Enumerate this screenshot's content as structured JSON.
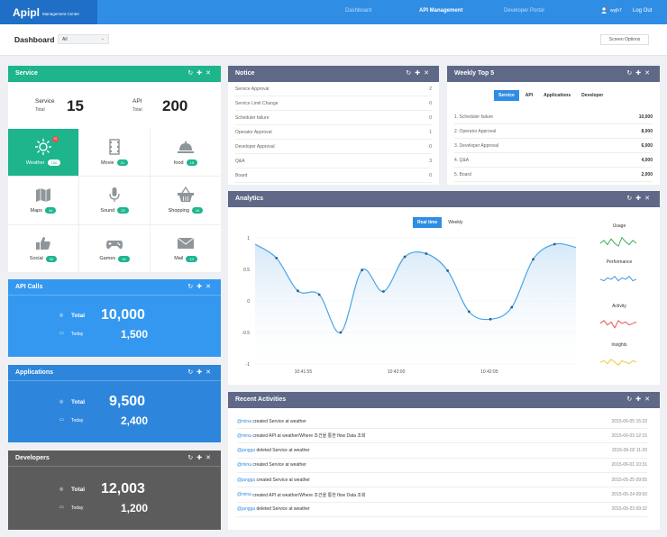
{
  "nav": {
    "logo": "Apipl",
    "sub": "Management Center",
    "links": [
      "Dashboard",
      "API Management",
      "Developer Portal"
    ],
    "user": "wyjh7",
    "user_badge": "N",
    "logout": "Log Out"
  },
  "header": {
    "title": "Dashboard",
    "select_value": "All",
    "screen_options": "Screen Options"
  },
  "service": {
    "title": "Service",
    "stat1_label": "Service",
    "stat1_sub": "Total",
    "stat1_value": "15",
    "stat2_label": "API",
    "stat2_sub": "Total",
    "stat2_value": "200",
    "items": [
      {
        "label": "Weather",
        "count": "150",
        "icon": "sun-icon",
        "notify": "N"
      },
      {
        "label": "Movie",
        "count": "21",
        "icon": "film-icon"
      },
      {
        "label": "food",
        "count": "15",
        "icon": "food-cloche-icon"
      },
      {
        "label": "Maps",
        "count": "44",
        "icon": "map-icon"
      },
      {
        "label": "Sound",
        "count": "25",
        "icon": "microphone-icon"
      },
      {
        "label": "Shopping",
        "count": "16",
        "icon": "basket-icon"
      },
      {
        "label": "Social",
        "count": "32",
        "icon": "thumbs-up-icon"
      },
      {
        "label": "Games",
        "count": "16",
        "icon": "gamepad-icon"
      },
      {
        "label": "Mail",
        "count": "13",
        "icon": "mail-icon"
      }
    ]
  },
  "api_calls": {
    "title": "API Calls",
    "total_label": "Total",
    "total": "10,000",
    "today_label": "Today",
    "today": "1,500",
    "color": "#3498f0"
  },
  "applications": {
    "title": "Applications",
    "total_label": "Total",
    "total": "9,500",
    "today_label": "Today",
    "today": "2,400",
    "color": "#2d86dc"
  },
  "developers": {
    "title": "Developers",
    "total_label": "Total",
    "total": "12,003",
    "today_label": "Today",
    "today": "1,200",
    "color": "#5c5c5c"
  },
  "notice": {
    "title": "Notice",
    "rows": [
      {
        "label": "Service Approval",
        "value": "2"
      },
      {
        "label": "Service Limit Change",
        "value": "0"
      },
      {
        "label": "Scheduler failure",
        "value": "0"
      },
      {
        "label": "Operator Approval",
        "value": "1"
      },
      {
        "label": "Developer Approval",
        "value": "0"
      },
      {
        "label": "Q&A",
        "value": "3"
      },
      {
        "label": "Board",
        "value": "0"
      }
    ]
  },
  "weekly": {
    "title": "Weekly Top 5",
    "tabs": [
      "Service",
      "API",
      "Applications",
      "Developer"
    ],
    "rows": [
      {
        "label": "1. Scheduler failure",
        "value": "10,000"
      },
      {
        "label": "2. Operator Approval",
        "value": "8,000"
      },
      {
        "label": "3. Developer Approval",
        "value": "6,000"
      },
      {
        "label": "4. Q&A",
        "value": "4,000"
      },
      {
        "label": "5. Board",
        "value": "2,000"
      }
    ]
  },
  "analytics": {
    "title": "Analytics",
    "tabs": [
      "Real time",
      "Weekly"
    ],
    "insights": [
      "Usage",
      "Performance",
      "Activity",
      "Insights"
    ],
    "insight_colors": [
      "#2fa84a",
      "#2f8de4",
      "#e8404a",
      "#e8c820"
    ]
  },
  "chart_data": {
    "type": "line",
    "yticks": [
      "1",
      "0.5",
      "0",
      "-0.5",
      "-1"
    ],
    "xticks": [
      "10:41:55",
      "10:42:00",
      "10:42:05"
    ],
    "ylim": [
      -1,
      1
    ],
    "x": [
      0,
      1,
      2,
      3,
      4,
      5,
      6,
      7,
      8,
      9,
      10,
      11,
      12,
      13,
      14,
      15
    ],
    "y": [
      0.9,
      0.68,
      0.16,
      0.1,
      -0.5,
      0.49,
      0.15,
      0.7,
      0.75,
      0.48,
      -0.17,
      -0.29,
      -0.1,
      0.66,
      0.9,
      0.85
    ]
  },
  "recent": {
    "title": "Recent Activities",
    "rows": [
      {
        "user": "@mina",
        "text": "created Service at weather",
        "date": "2015-06-05 15:33"
      },
      {
        "user": "@mina",
        "text": "created API at weather/Where 조건을 통한 flow Data 조회",
        "date": "2015-06-03 12:15"
      },
      {
        "user": "@jangga",
        "text": "deleted Service at weather",
        "date": "2015-06-02 11:20"
      },
      {
        "user": "@mina",
        "text": "created Service at weather",
        "date": "2015-06-01 10:31"
      },
      {
        "user": "@jangga",
        "text": "created Service at weather",
        "date": "2015-05-25 09:55"
      },
      {
        "user": "@mina",
        "text": "created API at weather/Where 조건을 통한 flow Data 조회",
        "date": "2015-05-24 09:50"
      },
      {
        "user": "@jangga",
        "text": "deleted Service at weather",
        "date": "2015-05-23 09:32"
      }
    ]
  }
}
